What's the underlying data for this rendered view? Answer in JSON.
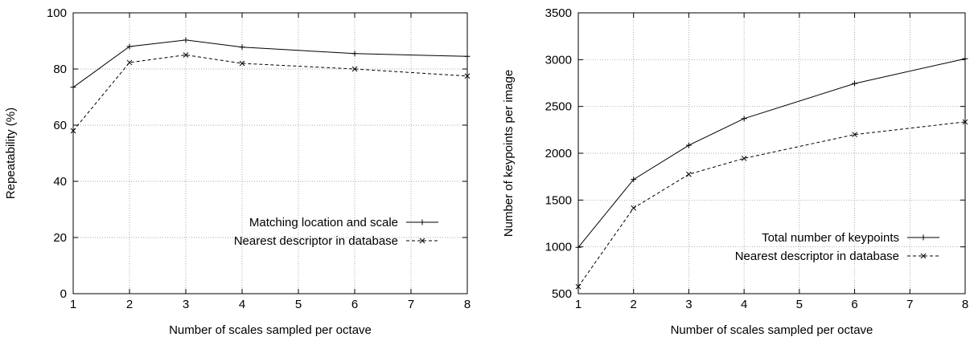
{
  "chart_data": [
    {
      "type": "line",
      "title": "",
      "xlabel": "Number of scales sampled per octave",
      "ylabel": "Repeatability (%)",
      "xlim": [
        1,
        8
      ],
      "ylim": [
        0,
        100
      ],
      "xticks": [
        1,
        2,
        3,
        4,
        5,
        6,
        7,
        8
      ],
      "yticks": [
        0,
        20,
        40,
        60,
        80,
        100
      ],
      "grid": true,
      "legend_position": "bottom-right",
      "series": [
        {
          "name": "Matching location and scale",
          "style": "solid",
          "marker": "+",
          "x": [
            1,
            2,
            3,
            4,
            6,
            8
          ],
          "y": [
            73.5,
            88.0,
            90.3,
            87.8,
            85.5,
            84.5
          ]
        },
        {
          "name": "Nearest descriptor in database",
          "style": "dashed",
          "marker": "x",
          "x": [
            1,
            2,
            3,
            4,
            6,
            8
          ],
          "y": [
            58.0,
            82.3,
            85.0,
            82.0,
            80.0,
            77.5
          ]
        }
      ]
    },
    {
      "type": "line",
      "title": "",
      "xlabel": "Number of scales sampled per octave",
      "ylabel": "Number of keypoints per image",
      "xlim": [
        1,
        8
      ],
      "ylim": [
        500,
        3500
      ],
      "xticks": [
        1,
        2,
        3,
        4,
        5,
        6,
        7,
        8
      ],
      "yticks": [
        500,
        1000,
        1500,
        2000,
        2500,
        3000,
        3500
      ],
      "grid": true,
      "legend_position": "bottom-right",
      "series": [
        {
          "name": "Total number of keypoints",
          "style": "solid",
          "marker": "+",
          "x": [
            1,
            2,
            3,
            4,
            6,
            8
          ],
          "y": [
            995,
            1720,
            2085,
            2370,
            2745,
            3010
          ]
        },
        {
          "name": "Nearest descriptor in database",
          "style": "dashed",
          "marker": "x",
          "x": [
            1,
            2,
            3,
            4,
            6,
            8
          ],
          "y": [
            575,
            1415,
            1775,
            1945,
            2200,
            2335
          ]
        }
      ]
    }
  ]
}
